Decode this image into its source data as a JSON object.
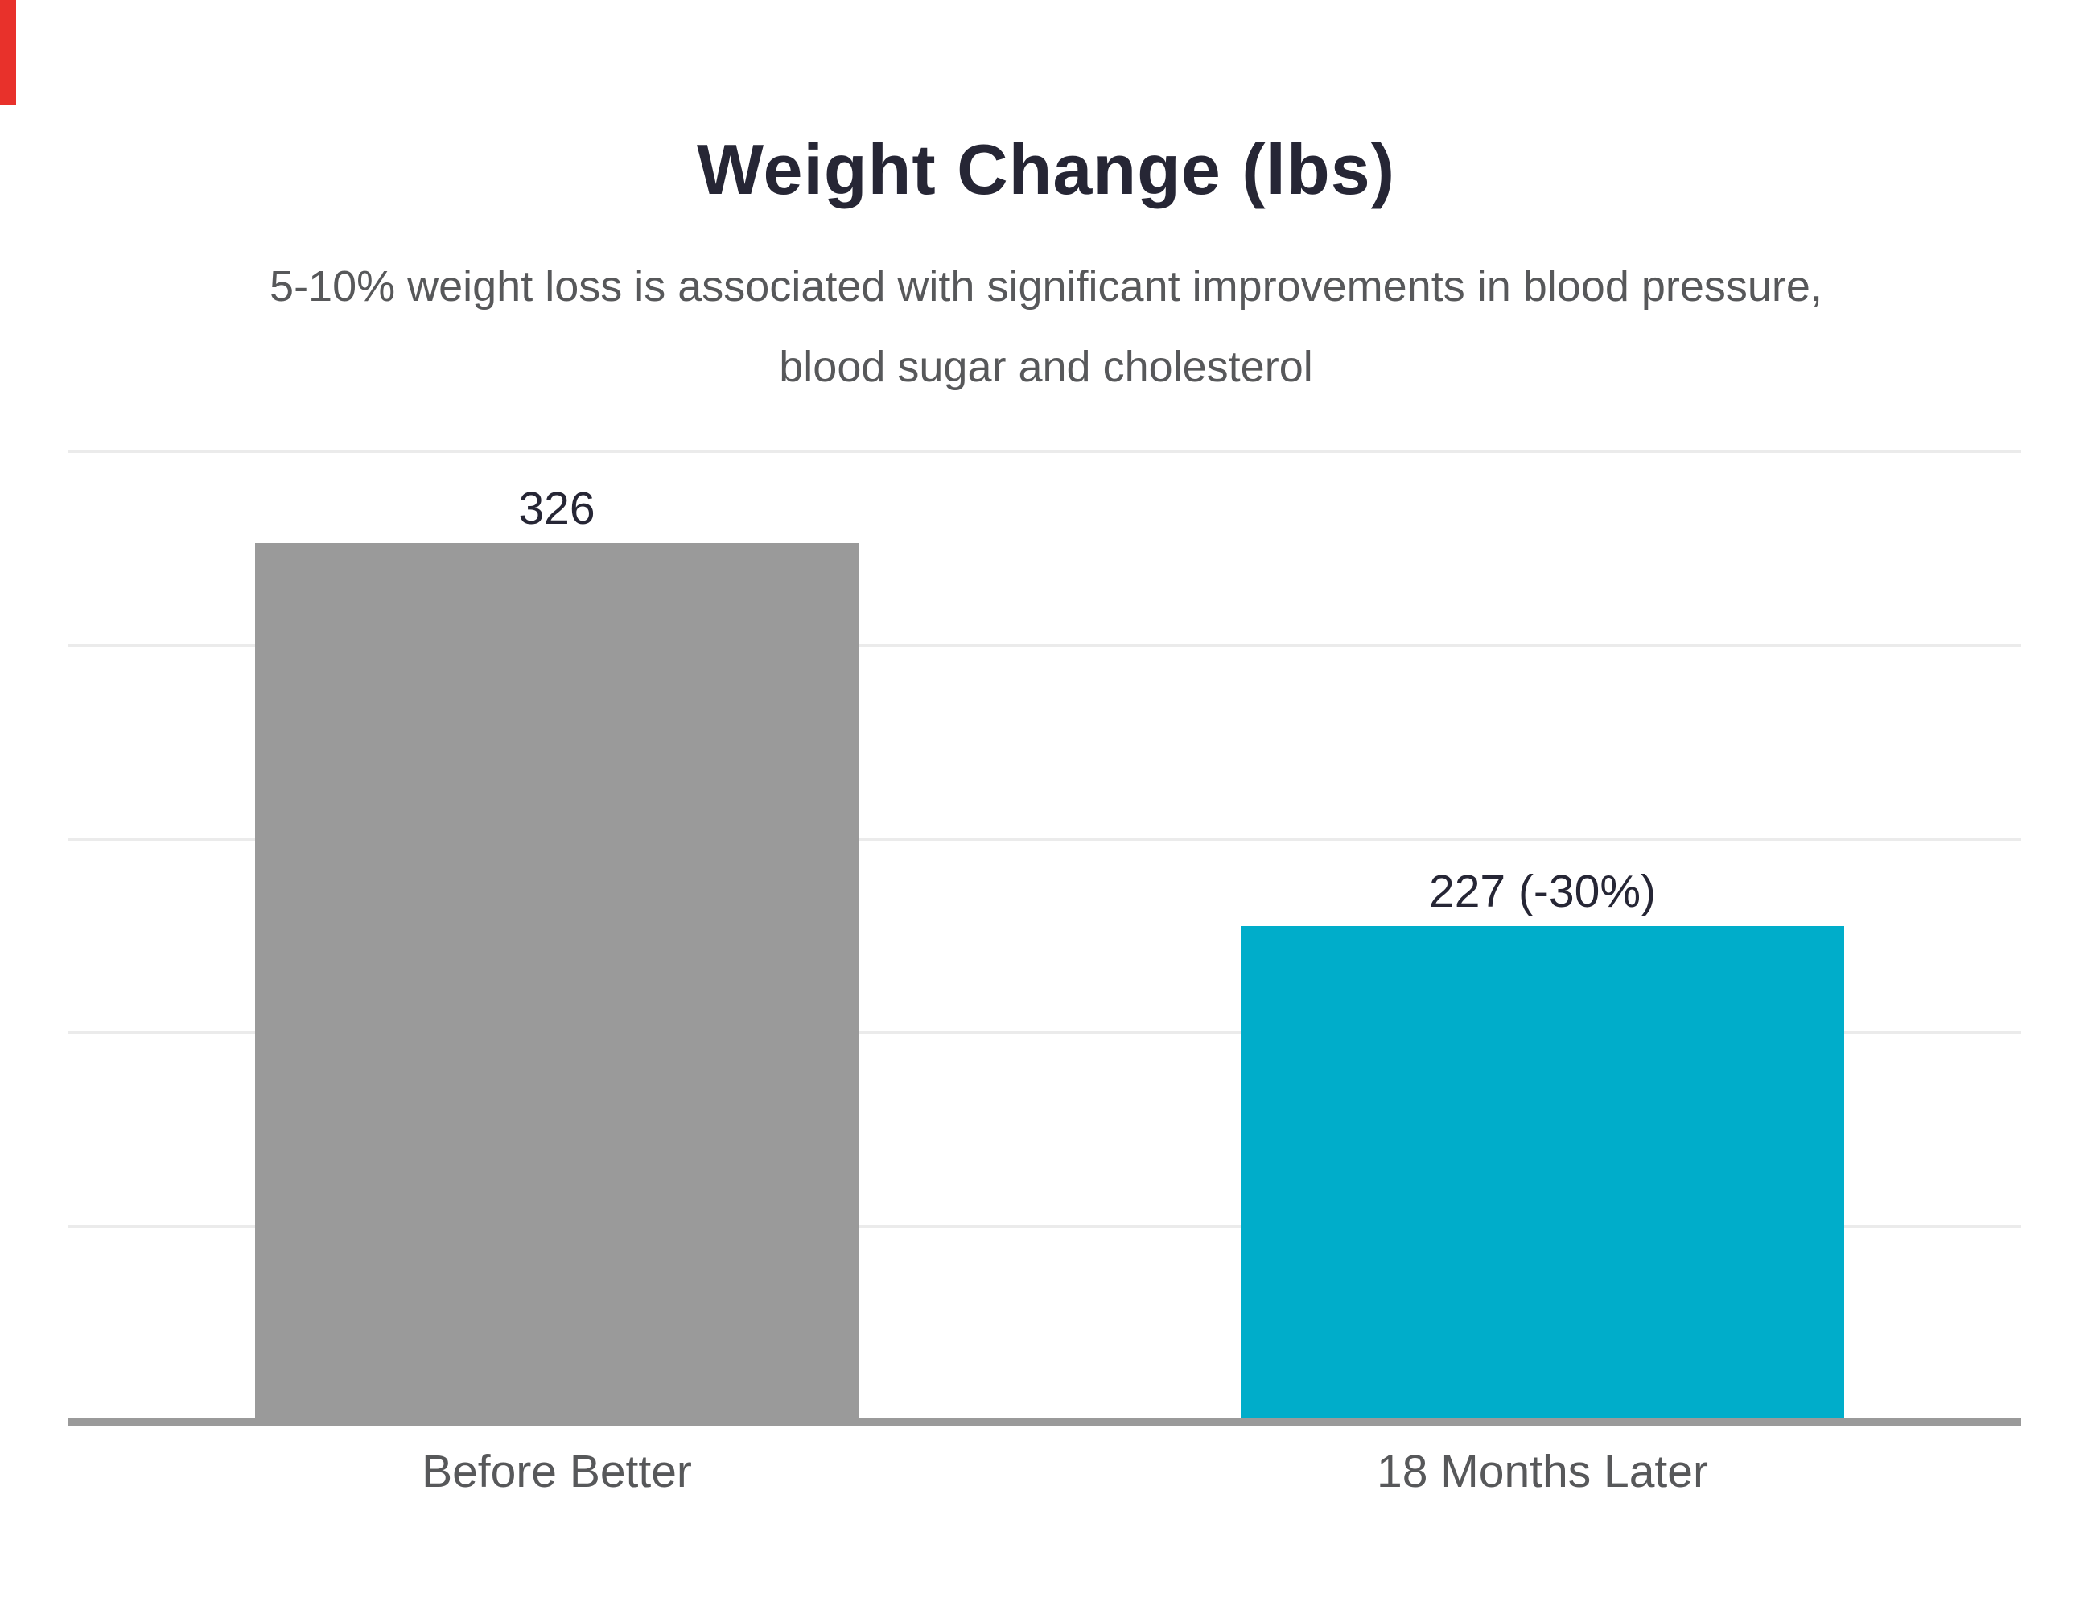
{
  "title": "Weight Change (lbs)",
  "subtitle": {
    "line1": "5-10% weight loss is associated with significant improvements in blood pressure,",
    "line2": "blood sugar and cholesterol"
  },
  "decor": {
    "left_edge_strip_color": "#e8312b"
  },
  "chart_data": {
    "type": "bar",
    "title": "Weight Change (lbs)",
    "subtitle": "5-10% weight loss is associated with significant improvements in blood pressure, blood sugar and cholesterol",
    "categories": [
      "Before Better",
      "18 Months Later"
    ],
    "values": [
      326,
      227
    ],
    "value_labels": [
      "326",
      "227 (-30%)"
    ],
    "series_colors": [
      "#9a9a9a",
      "#00adca"
    ],
    "xlabel": "",
    "ylabel": "",
    "ylim": [
      100,
      350
    ],
    "grid": true,
    "gridline_values": [
      350,
      300,
      250,
      200,
      150
    ],
    "gridline_color": "#ebebeb",
    "axis_line_color": "#9a9a9a",
    "legend": false,
    "text_color_dark": "#262635",
    "text_color_gray": "#57585a"
  }
}
